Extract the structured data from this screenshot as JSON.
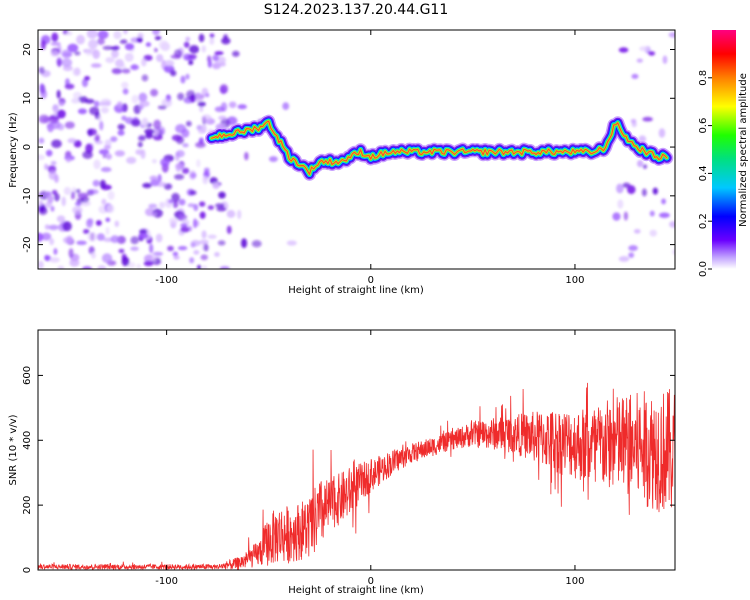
{
  "title": "S124.2023.137.20.44.G11",
  "colors": {
    "snr_line": "#ef2b2b",
    "spectrogram_low": "#a64dff",
    "spectrogram_high": "#ff0000"
  },
  "chart_data": [
    {
      "type": "heatmap",
      "xlabel": "Height of straight line (km)",
      "ylabel": "Frequency (Hz)",
      "xlim": [
        -163,
        149
      ],
      "ylim": [
        -25,
        24
      ],
      "xticks": [
        -100,
        0,
        100
      ],
      "yticks": [
        -20,
        -10,
        0,
        10,
        20
      ],
      "grid": false,
      "colorbar": {
        "label": "Normalized spectral amplitude",
        "range": [
          0,
          1
        ],
        "ticks": [
          "0.0",
          "0.2",
          "0.4",
          "0.6",
          "0.8"
        ],
        "colormap": "rainbow"
      },
      "ridge": {
        "x": [
          -78,
          -72,
          -65,
          -55,
          -50,
          -40,
          -30,
          -25,
          -15,
          -5,
          0,
          10,
          20,
          40,
          60,
          75,
          90,
          100,
          110,
          115,
          120,
          125,
          130,
          140,
          145
        ],
        "y": [
          2,
          2.5,
          3,
          4,
          5,
          -2,
          -5,
          -3,
          -3,
          -1,
          -2,
          -1,
          -1,
          -1,
          -1,
          -1,
          -1,
          -1,
          -1,
          0,
          5,
          2,
          0,
          -2,
          -2
        ]
      }
    },
    {
      "type": "line",
      "xlabel": "Height of straight line (km)",
      "ylabel": "SNR (10 * v/v)",
      "xlim": [
        -163,
        149
      ],
      "ylim": [
        0,
        740
      ],
      "xticks": [
        -100,
        0,
        100
      ],
      "yticks": [
        0,
        200,
        400,
        600
      ],
      "grid": false,
      "series": [
        {
          "envelope_x": [
            -163,
            -140,
            -100,
            -75,
            -65,
            -55,
            -50,
            -45,
            -40,
            -35,
            -30,
            -25,
            -20,
            -15,
            -10,
            -5,
            0,
            10,
            20,
            30,
            40,
            50,
            60,
            70,
            80,
            90,
            100,
            110,
            120,
            130,
            140,
            149
          ],
          "center": [
            10,
            10,
            10,
            10,
            20,
            50,
            90,
            110,
            110,
            120,
            130,
            170,
            200,
            220,
            240,
            270,
            290,
            330,
            360,
            380,
            400,
            420,
            420,
            420,
            410,
            400,
            390,
            380,
            390,
            380,
            370,
            360
          ],
          "spread": [
            8,
            8,
            8,
            8,
            20,
            40,
            80,
            90,
            90,
            90,
            100,
            110,
            80,
            80,
            80,
            60,
            50,
            40,
            30,
            30,
            30,
            40,
            50,
            60,
            80,
            100,
            110,
            130,
            150,
            170,
            190,
            200
          ]
        }
      ]
    }
  ]
}
